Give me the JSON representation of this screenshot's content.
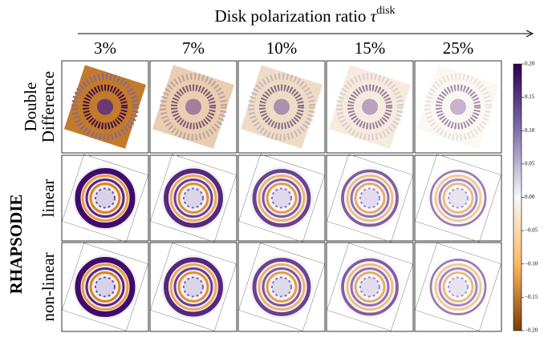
{
  "title": "Disk polarization ratio",
  "title_symbol": "τ",
  "title_superscript": "disk",
  "columns": [
    "3%",
    "7%",
    "10%",
    "15%",
    "25%"
  ],
  "rows": [
    {
      "label": [
        "Double",
        "Difference"
      ]
    },
    {
      "label": [
        "linear"
      ]
    },
    {
      "label": [
        "non-linear"
      ]
    }
  ],
  "row_group": "RHAPSODIE",
  "colorbar_ticks": [
    {
      "value": 0.2,
      "label": "0.20"
    },
    {
      "value": 0.15,
      "label": "0.15"
    },
    {
      "value": 0.1,
      "label": "0.10"
    },
    {
      "value": 0.05,
      "label": "0.05"
    },
    {
      "value": 0,
      "label": "0.00"
    },
    {
      "value": -0.05,
      "label": "−0.05"
    },
    {
      "value": -0.1,
      "label": "−0.10"
    },
    {
      "value": -0.15,
      "label": "−0.15"
    },
    {
      "value": -0.2,
      "label": "−0.20"
    }
  ]
}
